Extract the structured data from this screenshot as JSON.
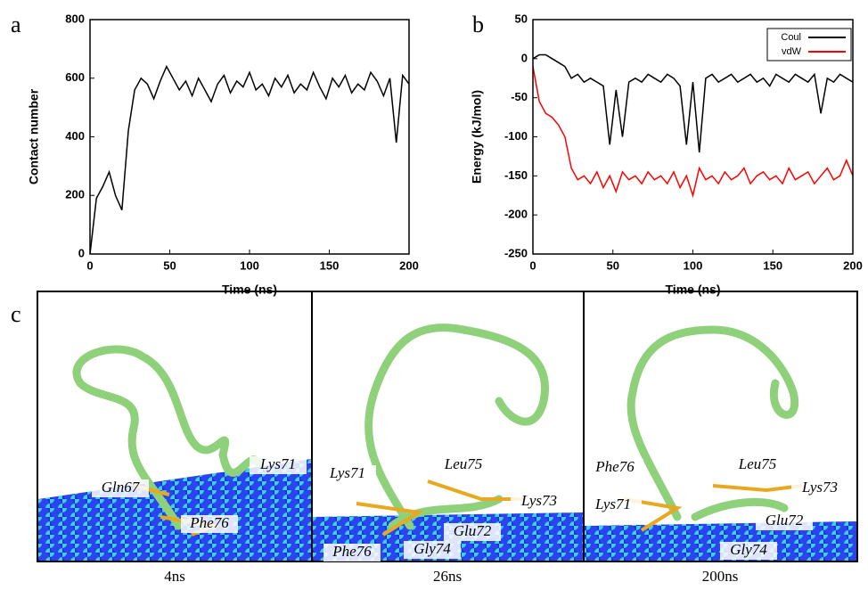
{
  "chart_data": [
    {
      "type": "line",
      "panel_label": "a",
      "x_label": "Time (ns)",
      "y_label": "Contact number",
      "x": [
        0,
        4,
        8,
        12,
        16,
        20,
        24,
        28,
        32,
        36,
        40,
        44,
        48,
        52,
        56,
        60,
        64,
        68,
        72,
        76,
        80,
        84,
        88,
        92,
        96,
        100,
        104,
        108,
        112,
        116,
        120,
        124,
        128,
        132,
        136,
        140,
        144,
        148,
        152,
        156,
        160,
        164,
        168,
        172,
        176,
        180,
        184,
        188,
        192,
        196,
        200
      ],
      "series": [
        {
          "name": null,
          "color": "#000000",
          "values": [
            0,
            190,
            230,
            280,
            200,
            150,
            420,
            560,
            600,
            580,
            530,
            590,
            640,
            600,
            560,
            590,
            540,
            600,
            560,
            520,
            580,
            610,
            550,
            590,
            570,
            620,
            560,
            580,
            540,
            600,
            570,
            610,
            550,
            580,
            560,
            620,
            570,
            530,
            600,
            570,
            610,
            550,
            580,
            560,
            620,
            590,
            540,
            600,
            380,
            610,
            580
          ]
        }
      ],
      "xlim": [
        0,
        200
      ],
      "xticks": [
        0,
        50,
        100,
        150,
        200
      ],
      "ylim": [
        0,
        800
      ],
      "yticks": [
        0,
        200,
        400,
        600,
        800
      ]
    },
    {
      "type": "line",
      "panel_label": "b",
      "x_label": "Time (ns)",
      "y_label": "Energy (kJ/mol)",
      "x": [
        0,
        4,
        8,
        12,
        16,
        20,
        24,
        28,
        32,
        36,
        40,
        44,
        48,
        52,
        56,
        60,
        64,
        68,
        72,
        76,
        80,
        84,
        88,
        92,
        96,
        100,
        104,
        108,
        112,
        116,
        120,
        124,
        128,
        132,
        136,
        140,
        144,
        148,
        152,
        156,
        160,
        164,
        168,
        172,
        176,
        180,
        184,
        188,
        192,
        196,
        200
      ],
      "series": [
        {
          "name": "Coul",
          "color": "#000000",
          "values": [
            0,
            5,
            5,
            0,
            -5,
            -10,
            -25,
            -20,
            -30,
            -25,
            -30,
            -35,
            -110,
            -40,
            -100,
            -30,
            -25,
            -30,
            -20,
            -25,
            -30,
            -20,
            -25,
            -35,
            -110,
            -30,
            -120,
            -25,
            -20,
            -30,
            -25,
            -20,
            -30,
            -25,
            -20,
            -30,
            -25,
            -35,
            -20,
            -25,
            -30,
            -20,
            -25,
            -30,
            -20,
            -70,
            -25,
            -30,
            -20,
            -25,
            -30
          ]
        },
        {
          "name": "vdW",
          "color": "#ff0000",
          "values": [
            -10,
            -55,
            -70,
            -75,
            -85,
            -100,
            -140,
            -155,
            -150,
            -160,
            -145,
            -165,
            -150,
            -170,
            -145,
            -155,
            -150,
            -160,
            -145,
            -155,
            -150,
            -160,
            -145,
            -165,
            -150,
            -175,
            -140,
            -155,
            -150,
            -160,
            -145,
            -155,
            -150,
            -140,
            -160,
            -150,
            -145,
            -155,
            -150,
            -160,
            -140,
            -155,
            -150,
            -145,
            -160,
            -150,
            -140,
            -155,
            -150,
            -130,
            -150
          ]
        }
      ],
      "xlim": [
        0,
        200
      ],
      "xticks": [
        0,
        50,
        100,
        150,
        200
      ],
      "ylim": [
        -250,
        50
      ],
      "yticks": [
        -250,
        -200,
        -150,
        -100,
        -50,
        0,
        50
      ],
      "legend": "upper right"
    }
  ],
  "panel_c": {
    "panel_label": "c",
    "snapshots": [
      {
        "time": "4ns",
        "residues": [
          "Lys71",
          "Gln67",
          "Phe76"
        ]
      },
      {
        "time": "26ns",
        "residues": [
          "Lys71",
          "Leu75",
          "Lys73",
          "Glu72",
          "Phe76",
          "Gly74"
        ]
      },
      {
        "time": "200ns",
        "residues": [
          "Phe76",
          "Leu75",
          "Lys73",
          "Lys71",
          "Glu72",
          "Gly74"
        ]
      }
    ]
  }
}
